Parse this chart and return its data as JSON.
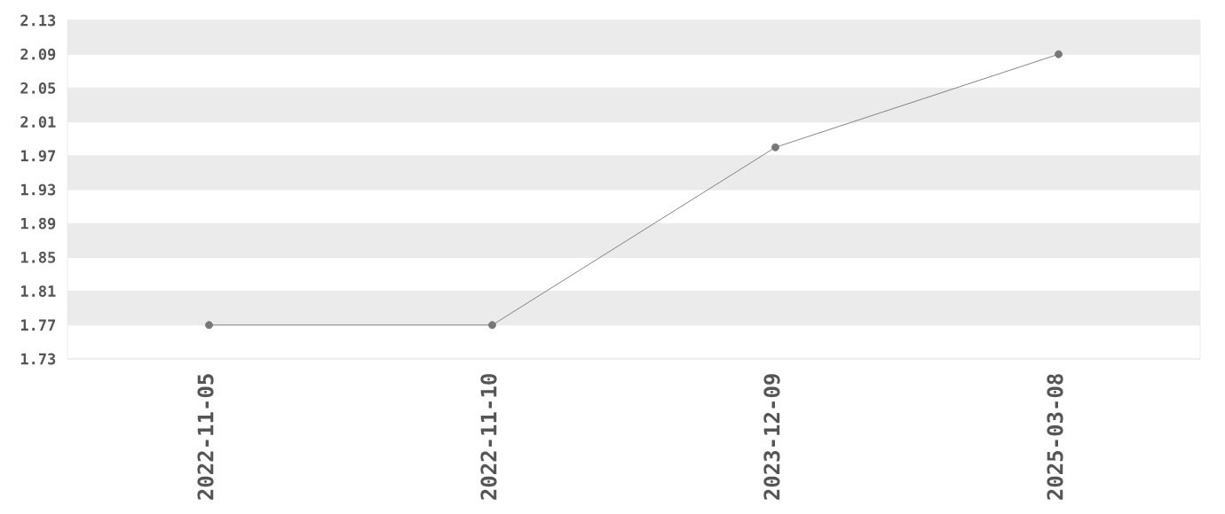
{
  "chart_data": {
    "type": "line",
    "categories": [
      "2022-11-05",
      "2022-11-10",
      "2023-12-09",
      "2025-03-08"
    ],
    "values": [
      1.77,
      1.77,
      1.98,
      2.09
    ],
    "color": "#777777",
    "ylim": [
      1.73,
      2.13
    ],
    "yticks": [
      1.73,
      1.77,
      1.81,
      1.85,
      1.89,
      1.93,
      1.97,
      2.01,
      2.05,
      2.09,
      2.13
    ],
    "grid": "y",
    "marker": "circle",
    "line_style": "solid"
  }
}
